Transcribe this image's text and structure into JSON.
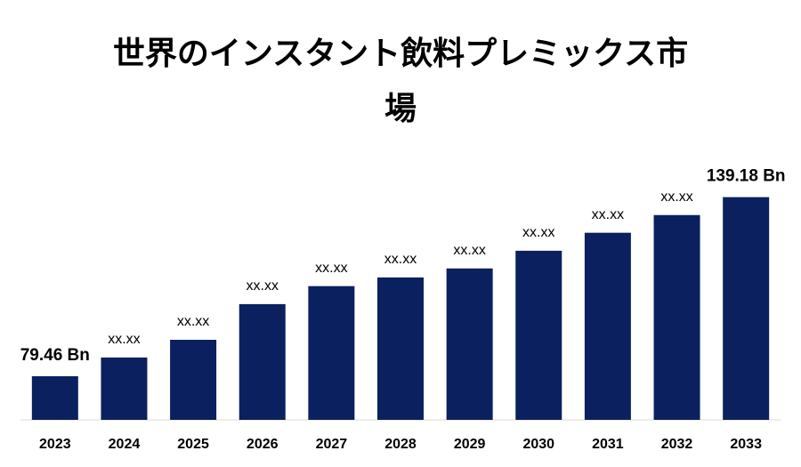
{
  "chart_data": {
    "type": "bar",
    "title": "世界のインスタント飲料プレミックス市場",
    "categories": [
      "2023",
      "2024",
      "2025",
      "2026",
      "2027",
      "2028",
      "2029",
      "2030",
      "2031",
      "2032",
      "2033"
    ],
    "values": [
      79.46,
      85.7,
      91.6,
      103.5,
      109.5,
      112.4,
      115.4,
      121.3,
      127.3,
      133.2,
      139.18
    ],
    "value_labels": [
      "79.46 Bn",
      "xx.xx",
      "xx.xx",
      "xx.xx",
      "xx.xx",
      "xx.xx",
      "xx.xx",
      "xx.xx",
      "xx.xx",
      "xx.xx",
      "139.18 Bn"
    ],
    "color": "#0b205e",
    "ylim": [
      64.9,
      145
    ]
  }
}
